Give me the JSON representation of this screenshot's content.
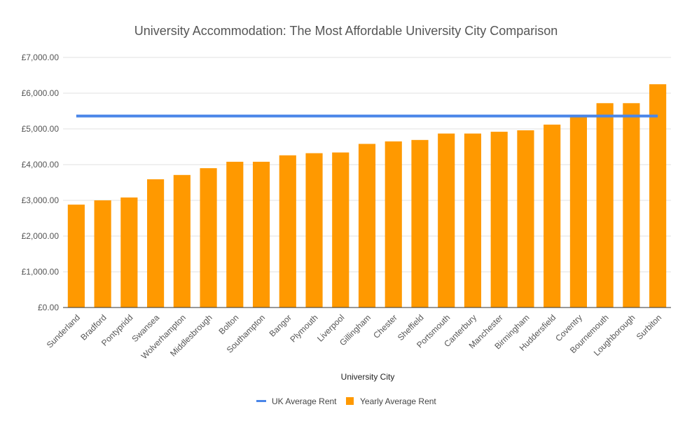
{
  "chart_data": {
    "type": "bar",
    "title": "University Accommodation: The Most Affordable University City Comparison",
    "xlabel": "University City",
    "ylabel": "",
    "ylim": [
      0,
      7000
    ],
    "yticks": [
      "£0.00",
      "£1,000.00",
      "£2,000.00",
      "£3,000.00",
      "£4,000.00",
      "£5,000.00",
      "£6,000.00",
      "£7,000.00"
    ],
    "ytick_values": [
      0,
      1000,
      2000,
      3000,
      4000,
      5000,
      6000,
      7000
    ],
    "categories": [
      "Sunderland",
      "Bradford",
      "Pontypridd",
      "Swansea",
      "Wolverhampton",
      "Middlesbrough",
      "Bolton",
      "Southampton",
      "Bangor",
      "Plymouth",
      "Liverpool",
      "Gillingham",
      "Chester",
      "Sheffield",
      "Portsmouth",
      "Canterbury",
      "Manchester",
      "Birmingham",
      "Huddersfield",
      "Coventry",
      "Bournemouth",
      "Loughborough",
      "Surbiton"
    ],
    "series": [
      {
        "name": "UK Average Rent",
        "kind": "line",
        "color": "#4a86e8",
        "values": [
          5360,
          5360,
          5360,
          5360,
          5360,
          5360,
          5360,
          5360,
          5360,
          5360,
          5360,
          5360,
          5360,
          5360,
          5360,
          5360,
          5360,
          5360,
          5360,
          5360,
          5360,
          5360,
          5360
        ]
      },
      {
        "name": "Yearly Average Rent",
        "kind": "bar",
        "color": "#ff9900",
        "values": [
          2880,
          3000,
          3080,
          3590,
          3710,
          3900,
          4080,
          4080,
          4260,
          4320,
          4340,
          4580,
          4650,
          4690,
          4870,
          4870,
          4920,
          4960,
          5120,
          5340,
          5720,
          5720,
          6250
        ]
      }
    ],
    "grid": true,
    "legend_position": "bottom"
  }
}
